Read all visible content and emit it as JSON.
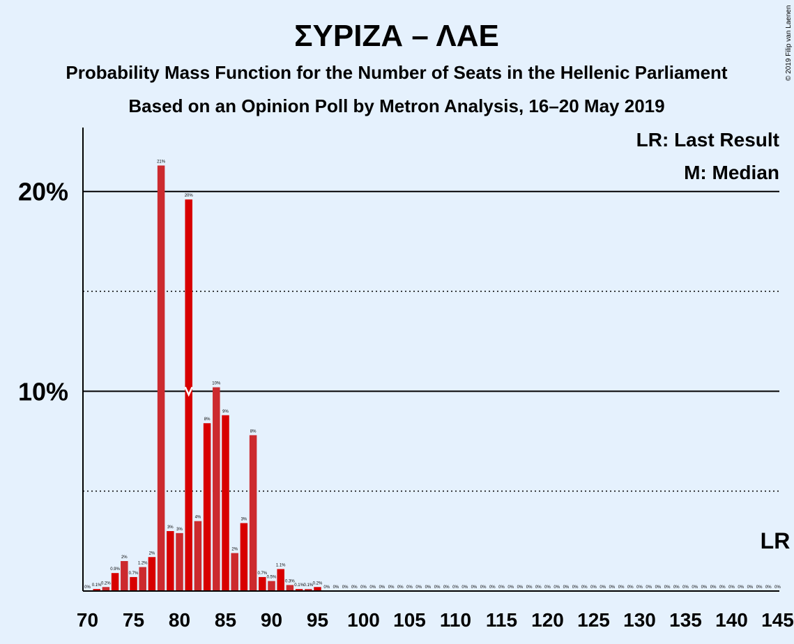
{
  "copyright": "© 2019 Filip van Laenen",
  "chart_data": {
    "type": "bar",
    "title": "ΣΥΡΙΖΑ – ΛΑΕ",
    "subtitle_lines": [
      "Probability Mass Function for the Number of Seats in the Hellenic Parliament",
      "Based on an Opinion Poll by Metron Analysis, 16–20 May 2019"
    ],
    "legend": [
      "LR: Last Result",
      "M: Median"
    ],
    "legend_position": "top-right",
    "ylim": [
      0,
      23.2
    ],
    "yticks": [
      {
        "value": 10,
        "label": "10%"
      },
      {
        "value": 20,
        "label": "20%"
      }
    ],
    "gridlines_dotted": [
      5,
      15
    ],
    "gridlines_solid": [
      10,
      20
    ],
    "xticks": [
      "70",
      "75",
      "80",
      "85",
      "90",
      "95",
      "100",
      "105",
      "110",
      "115",
      "120",
      "125",
      "130",
      "135",
      "140",
      "145"
    ],
    "x": [
      70,
      71,
      72,
      73,
      74,
      75,
      76,
      77,
      78,
      79,
      80,
      81,
      82,
      83,
      84,
      85,
      86,
      87,
      88,
      89,
      90,
      91,
      92,
      93,
      94,
      95,
      96,
      97,
      98,
      99,
      100,
      101,
      102,
      103,
      104,
      105,
      106,
      107,
      108,
      109,
      110,
      111,
      112,
      113,
      114,
      115,
      116,
      117,
      118,
      119,
      120,
      121,
      122,
      123,
      124,
      125,
      126,
      127,
      128,
      129,
      130,
      131,
      132,
      133,
      134,
      135,
      136,
      137,
      138,
      139,
      140,
      141,
      142,
      143,
      144,
      145
    ],
    "values": [
      0,
      0.1,
      0.2,
      0.9,
      1.5,
      0.7,
      1.2,
      1.7,
      21.3,
      3.0,
      2.9,
      19.6,
      3.5,
      8.4,
      10.2,
      8.8,
      1.9,
      3.4,
      7.8,
      0.7,
      0.5,
      1.1,
      0.3,
      0.1,
      0.1,
      0.2,
      0,
      0,
      0,
      0,
      0,
      0,
      0,
      0,
      0,
      0,
      0,
      0,
      0,
      0,
      0,
      0,
      0,
      0,
      0,
      0,
      0,
      0,
      0,
      0,
      0,
      0,
      0,
      0,
      0,
      0,
      0,
      0,
      0,
      0,
      0,
      0,
      0,
      0,
      0,
      0,
      0,
      0,
      0,
      0,
      0,
      0,
      0,
      0,
      0,
      0
    ],
    "labels": [
      "0%",
      "0.1%",
      "0.2%",
      "0.9%",
      "2%",
      "0.7%",
      "1.2%",
      "2%",
      "21%",
      "3%",
      "3%",
      "20%",
      "4%",
      "8%",
      "10%",
      "9%",
      "2%",
      "3%",
      "8%",
      "0.7%",
      "0.5%",
      "1.1%",
      "0.3%",
      "0.1%",
      "0.1%",
      "0.2%",
      "0%",
      "0%",
      "0%",
      "0%",
      "0%",
      "0%",
      "0%",
      "0%",
      "0%",
      "0%",
      "0%",
      "0%",
      "0%",
      "0%",
      "0%",
      "0%",
      "0%",
      "0%",
      "0%",
      "0%",
      "0%",
      "0%",
      "0%",
      "0%",
      "0%",
      "0%",
      "0%",
      "0%",
      "0%",
      "0%",
      "0%",
      "0%",
      "0%",
      "0%",
      "0%",
      "0%",
      "0%",
      "0%",
      "0%",
      "0%",
      "0%",
      "0%",
      "0%",
      "0%",
      "0%",
      "0%",
      "0%",
      "0%",
      "0%",
      "0%"
    ],
    "median_seat": 81,
    "median_marker": "M",
    "last_result_seat": 145,
    "last_result_label": "LR",
    "colors": {
      "bar_dark": "#cc2a2e",
      "bar_light": "#d80000",
      "background": "#e5f1fd",
      "axis": "#000000",
      "median_marker": "#ffffff"
    }
  }
}
